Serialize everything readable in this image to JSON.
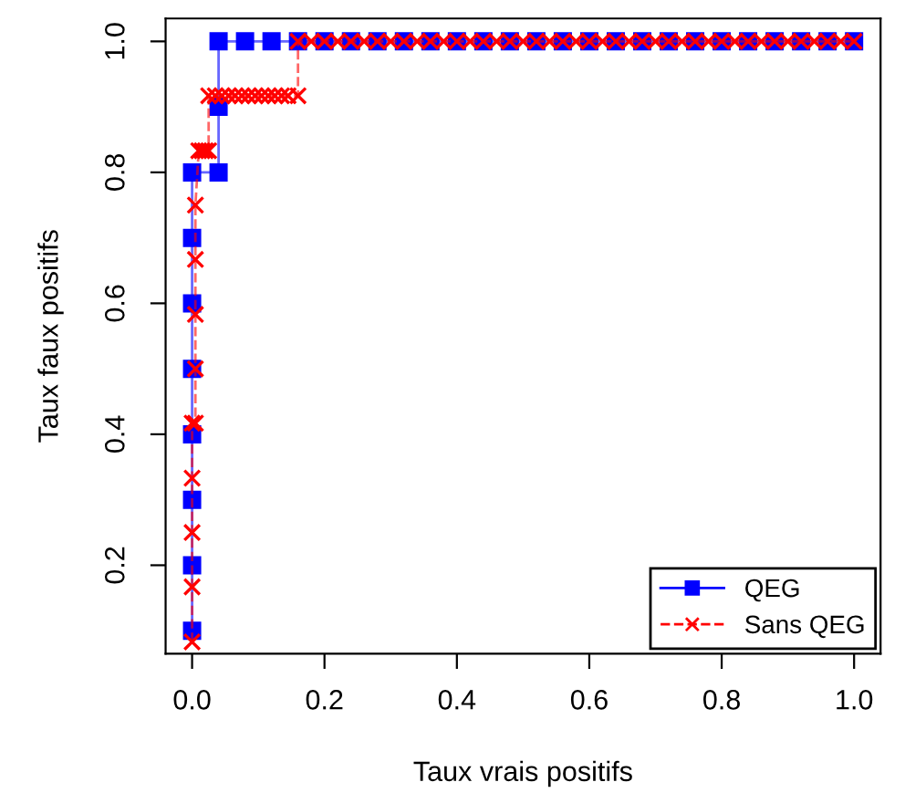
{
  "chart_data": {
    "type": "line",
    "xlabel": "Taux vrais positifs",
    "ylabel": "Taux faux positifs",
    "xlim": [
      -0.04,
      1.04
    ],
    "ylim": [
      0.065,
      1.035
    ],
    "xticks": [
      {
        "value": 0,
        "label": "0.0"
      },
      0.2,
      0.4,
      0.6,
      0.8,
      {
        "value": 1,
        "label": "1.0"
      }
    ],
    "yticks": [
      0.2,
      0.4,
      0.6,
      0.8,
      {
        "value": 1,
        "label": "1.0"
      }
    ],
    "grid": false,
    "legend": "bottom right",
    "series": [
      {
        "name": "QEG",
        "color": "#0000ff",
        "marker": "square",
        "line_style": "solid",
        "x": [
          0,
          0,
          0,
          0,
          0,
          0,
          0,
          0,
          0.04,
          0.04,
          0.04,
          0.08,
          0.12,
          0.16,
          0.2,
          0.24,
          0.28,
          0.32,
          0.36,
          0.4,
          0.44,
          0.48,
          0.52,
          0.56,
          0.6,
          0.64,
          0.68,
          0.72,
          0.76,
          0.8,
          0.84,
          0.88,
          0.92,
          0.96,
          1.0
        ],
        "values": [
          0.1,
          0.2,
          0.3,
          0.4,
          0.5,
          0.6,
          0.7,
          0.8,
          0.8,
          0.9,
          1,
          1,
          1,
          1,
          1,
          1,
          1,
          1,
          1,
          1,
          1,
          1,
          1,
          1,
          1,
          1,
          1,
          1,
          1,
          1,
          1,
          1,
          1,
          1,
          1
        ]
      },
      {
        "name": "Sans QEG",
        "color": "#ff0000",
        "marker": "cross",
        "line_style": "dashed",
        "x": [
          0,
          0,
          0,
          0,
          0,
          0.005,
          0.005,
          0.005,
          0.005,
          0.005,
          0.01,
          0.015,
          0.02,
          0.025,
          0.025,
          0.035,
          0.045,
          0.055,
          0.065,
          0.075,
          0.085,
          0.095,
          0.105,
          0.115,
          0.125,
          0.135,
          0.145,
          0.16,
          0.16,
          0.18,
          0.2,
          0.22,
          0.24,
          0.26,
          0.28,
          0.3,
          0.32,
          0.34,
          0.36,
          0.38,
          0.4,
          0.42,
          0.44,
          0.46,
          0.48,
          0.5,
          0.52,
          0.54,
          0.56,
          0.58,
          0.6,
          0.62,
          0.64,
          0.66,
          0.68,
          0.7,
          0.72,
          0.74,
          0.76,
          0.78,
          0.8,
          0.82,
          0.84,
          0.86,
          0.88,
          0.9,
          0.92,
          0.94,
          0.96,
          0.98,
          1.0
        ],
        "values": [
          0.083,
          0.167,
          0.25,
          0.333,
          0.417,
          0.417,
          0.5,
          0.583,
          0.667,
          0.75,
          0.833,
          0.833,
          0.833,
          0.833,
          0.917,
          0.917,
          0.917,
          0.917,
          0.917,
          0.917,
          0.917,
          0.917,
          0.917,
          0.917,
          0.917,
          0.917,
          0.917,
          0.917,
          1,
          1,
          1,
          1,
          1,
          1,
          1,
          1,
          1,
          1,
          1,
          1,
          1,
          1,
          1,
          1,
          1,
          1,
          1,
          1,
          1,
          1,
          1,
          1,
          1,
          1,
          1,
          1,
          1,
          1,
          1,
          1,
          1,
          1,
          1,
          1,
          1,
          1,
          1,
          1,
          1,
          1,
          1
        ]
      }
    ]
  }
}
